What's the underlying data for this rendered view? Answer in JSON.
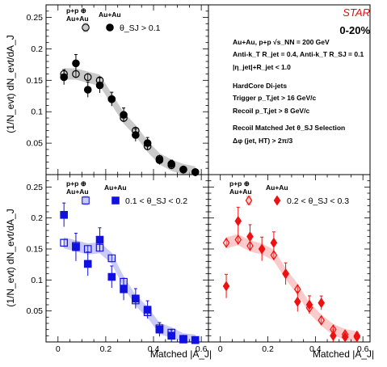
{
  "figure": {
    "experiment": "STAR",
    "centrality": "0-20%",
    "info_lines": [
      "Au+Au, p+p √s_NN = 200 GeV",
      "Anti-k_T R_jet = 0.4, Anti-k_T R_SJ = 0.1",
      "|η_jet|+R_jet < 1.0",
      "HardCore Di-jets",
      "Trigger p_T,jet > 16 GeV/c",
      "Recoil p_T,jet > 8 GeV/c",
      "Recoil Matched Jet θ_SJ Selection",
      "Δφ (jet, HT) > 2π/3"
    ],
    "ylabel": "(1/N_evt) dN_evt/dA_J",
    "xlabel": "Matched |A_J|",
    "legend_pp_label": "p+p ⊕ Au+Au",
    "legend_auau_label": "Au+Au",
    "x_ticks": [
      "0",
      "0.2",
      "0.4",
      "0.6"
    ],
    "y_ticks": [
      "0.05",
      "0.1",
      "0.15",
      "0.2",
      "0.25"
    ]
  },
  "chart_data": [
    {
      "type": "scatter",
      "panel": "top-left",
      "selection": "θ_SJ > 0.1",
      "color": "#000000",
      "marker": "circle",
      "xlim": [
        -0.05,
        0.63
      ],
      "ylim": [
        0,
        0.27
      ],
      "x": [
        0.025,
        0.075,
        0.125,
        0.175,
        0.225,
        0.275,
        0.325,
        0.375,
        0.425,
        0.475,
        0.525,
        0.575
      ],
      "series": [
        {
          "name": "Au+Au",
          "values": [
            0.155,
            0.177,
            0.135,
            0.142,
            0.12,
            0.095,
            0.063,
            0.05,
            0.023,
            0.017,
            0.008,
            0.004
          ]
        },
        {
          "name": "p+p ⊕ Au+Au",
          "values": [
            0.16,
            0.16,
            0.155,
            0.15,
            0.12,
            0.09,
            0.07,
            0.045,
            0.025,
            0.015,
            0.008,
            0.004
          ]
        }
      ]
    },
    {
      "type": "scatter",
      "panel": "bottom-left",
      "selection": "0.1 < θ_SJ < 0.2",
      "color": "#1010e0",
      "marker": "square",
      "xlim": [
        -0.05,
        0.63
      ],
      "ylim": [
        0,
        0.27
      ],
      "x": [
        0.025,
        0.075,
        0.125,
        0.175,
        0.225,
        0.275,
        0.325,
        0.375,
        0.425,
        0.475,
        0.525,
        0.575
      ],
      "series": [
        {
          "name": "Au+Au",
          "values": [
            0.205,
            0.153,
            0.126,
            0.165,
            0.105,
            0.085,
            0.07,
            0.052,
            0.02,
            0.01,
            0.004,
            0.003
          ]
        },
        {
          "name": "p+p ⊕ Au+Au",
          "values": [
            0.16,
            0.155,
            0.15,
            0.152,
            0.135,
            0.097,
            0.067,
            0.048,
            0.022,
            0.015,
            0.005,
            0.003
          ]
        }
      ]
    },
    {
      "type": "scatter",
      "panel": "bottom-right",
      "selection": "0.2 < θ_SJ < 0.3",
      "color": "#ee1111",
      "marker": "diamond",
      "xlim": [
        -0.05,
        0.63
      ],
      "ylim": [
        0,
        0.27
      ],
      "x": [
        0.025,
        0.075,
        0.125,
        0.175,
        0.225,
        0.275,
        0.325,
        0.375,
        0.425,
        0.475,
        0.525,
        0.575
      ],
      "series": [
        {
          "name": "Au+Au",
          "values": [
            0.09,
            0.195,
            0.17,
            0.15,
            0.16,
            0.11,
            0.065,
            0.06,
            0.063,
            0.01,
            0.008,
            0.01
          ]
        },
        {
          "name": "p+p ⊕ Au+Au",
          "values": [
            0.16,
            0.165,
            0.155,
            0.15,
            0.14,
            0.11,
            0.085,
            0.055,
            0.035,
            0.02,
            0.012,
            0.008
          ]
        }
      ]
    }
  ]
}
